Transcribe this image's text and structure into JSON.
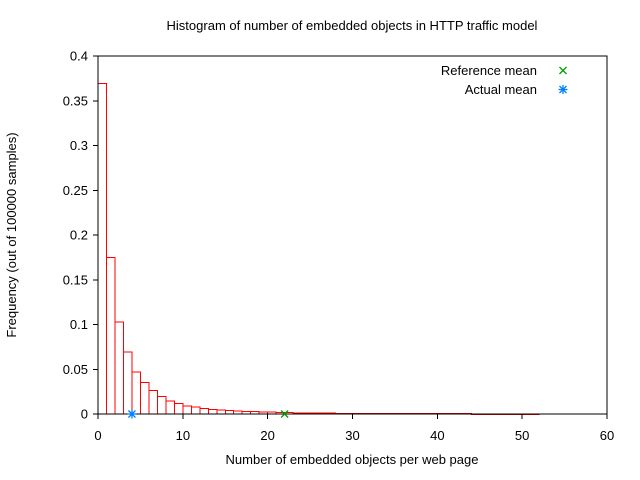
{
  "chart_data": {
    "type": "bar",
    "title": "Histogram of number of embedded objects in HTTP traffic model",
    "xlabel": "Number of embedded objects per web page",
    "ylabel": "Frequency (out of 100000 samples)",
    "xlim": [
      0,
      60
    ],
    "ylim": [
      0,
      0.4
    ],
    "xticks": [
      0,
      10,
      20,
      30,
      40,
      50,
      60
    ],
    "xtick_labels": [
      "0",
      "10",
      "20",
      "30",
      "40",
      "50",
      "60"
    ],
    "yticks": [
      0,
      0.05,
      0.1,
      0.15,
      0.2,
      0.25,
      0.3,
      0.35,
      0.4
    ],
    "ytick_labels": [
      "0",
      "0.05",
      "0.1",
      "0.15",
      "0.2",
      "0.25",
      "0.3",
      "0.35",
      "0.4"
    ],
    "grid": false,
    "legend_position": "top-right-inside",
    "bar_color": "#ff0000",
    "bar_fill": "none",
    "bin_start": 0,
    "bin_width": 1,
    "frequencies": [
      0.369,
      0.175,
      0.103,
      0.069,
      0.047,
      0.035,
      0.026,
      0.0195,
      0.0145,
      0.0115,
      0.0092,
      0.0076,
      0.0063,
      0.0053,
      0.0045,
      0.0039,
      0.0034,
      0.0029,
      0.0026,
      0.0023,
      0.002,
      0.0018,
      0.0014,
      0.0012,
      0.0011,
      0.001,
      0.0009,
      0.00085,
      0.0008,
      0.00075,
      0.0007,
      0.00065,
      0.0006,
      0.00055,
      0.0005,
      0.0005,
      0.00045,
      0.0004,
      0.0004,
      0.00035,
      0.00035,
      0.0003,
      0.0003,
      0.00028,
      0.00026,
      0.00024,
      0.00022,
      0.0002,
      0.0002,
      0.00018,
      0.00016,
      0.00015
    ],
    "markers": [
      {
        "label": "Reference mean",
        "symbol": "x-cross",
        "color": "#00a000",
        "x": 22,
        "y": 0
      },
      {
        "label": "Actual mean",
        "symbol": "asterisk",
        "color": "#0080ff",
        "x": 4,
        "y": 0
      }
    ],
    "legend": [
      {
        "label": "Reference mean",
        "symbol": "x-cross",
        "color": "#00a000"
      },
      {
        "label": "Actual mean",
        "symbol": "asterisk",
        "color": "#0080ff"
      }
    ],
    "axis_color": "#000000",
    "text_color": "#000000"
  }
}
